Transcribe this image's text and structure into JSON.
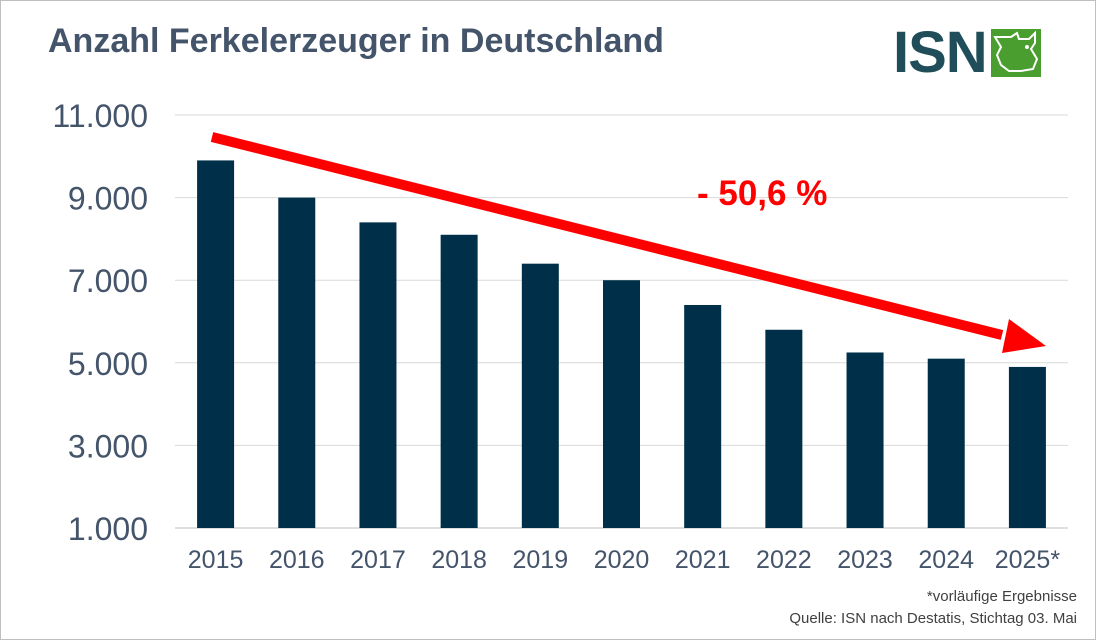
{
  "chart_data": {
    "type": "bar",
    "title": "Anzahl Ferkelerzeuger in Deutschland",
    "categories": [
      "2015",
      "2016",
      "2017",
      "2018",
      "2019",
      "2020",
      "2021",
      "2022",
      "2023",
      "2024",
      "2025*"
    ],
    "values": [
      9900,
      9000,
      8400,
      8100,
      7400,
      7000,
      6400,
      5800,
      5250,
      5100,
      4900
    ],
    "ylim": [
      1000,
      11000
    ],
    "yticks": [
      1000,
      3000,
      5000,
      7000,
      9000,
      11000
    ],
    "ytick_labels": [
      "1.000",
      "3.000",
      "5.000",
      "7.000",
      "9.000",
      "11.000"
    ],
    "grid": true,
    "bar_color": "#003049",
    "annotation": {
      "text": "- 50,6 %",
      "color": "#ff0000"
    }
  },
  "logo": {
    "text": "ISN",
    "text_color": "#1f4e5a",
    "mark_color": "#4a9d2f"
  },
  "footnotes": {
    "note": "*vorläufige Ergebnisse",
    "source": "Quelle: ISN nach Destatis, Stichtag 03. Mai"
  }
}
